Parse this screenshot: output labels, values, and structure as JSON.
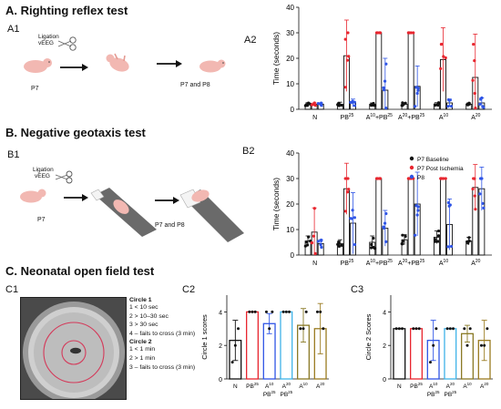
{
  "sections": {
    "a": "A. Righting reflex test",
    "b": "B. Negative geotaxis test",
    "c": "C. Neonatal open field test"
  },
  "panels": {
    "a1": "A1",
    "a2": "A2",
    "b1": "B1",
    "b2": "B2",
    "c1": "C1",
    "c2": "C2",
    "c3": "C3"
  },
  "schematic_a": {
    "ligation": "Ligation",
    "veeg": "vEEG",
    "p7": "P7",
    "p7p8": "P7 and P8"
  },
  "schematic_b": {
    "ligation": "Ligation",
    "veeg": "vEEG",
    "p7": "P7",
    "p7p8": "P7 and P8"
  },
  "open_field": {
    "c1_title": "Circle 1",
    "c1_items": [
      "1 < 10 sec",
      "2 > 10–30 sec",
      "3 > 30 sec",
      "4 – fails to cross (3 min)"
    ],
    "c2_title": "Circle 2",
    "c2_items": [
      "1 < 1 min",
      "2 > 1 min",
      "3 – fails to cross (3 min)"
    ]
  },
  "colors": {
    "baseline": "#111111",
    "post": "#e8262f",
    "p8": "#2f55e6"
  },
  "chart_data": [
    {
      "id": "a2",
      "type": "bar",
      "ylabel": "Time (seconds)",
      "ylim": [
        0,
        40
      ],
      "yticks": [
        0,
        10,
        20,
        30,
        40
      ],
      "categories": [
        {
          "name": "N",
          "sub": ""
        },
        {
          "name": "PB",
          "sup": "25"
        },
        {
          "name": "A",
          "sup": "10",
          "rest": "+PB",
          "rest_sup": "25"
        },
        {
          "name": "A",
          "sup": "20",
          "rest": "+PB",
          "rest_sup": "25"
        },
        {
          "name": "A",
          "sup": "10"
        },
        {
          "name": "A",
          "sup": "20"
        }
      ],
      "series": [
        {
          "color_key": "baseline",
          "values": [
            2,
            2,
            2,
            2,
            2,
            2
          ],
          "err": [
            0.6,
            0.8,
            0.5,
            0.6,
            0.6,
            0.5
          ]
        },
        {
          "color_key": "post",
          "values": [
            2,
            21,
            30,
            30,
            19.5,
            12.5
          ],
          "err": [
            0.5,
            14,
            0,
            0,
            12.5,
            17
          ]
        },
        {
          "color_key": "p8",
          "values": [
            2,
            2.5,
            7.5,
            9,
            2.5,
            2.5
          ],
          "err": [
            0.5,
            1.5,
            12.5,
            8,
            1.5,
            2
          ]
        }
      ]
    },
    {
      "id": "b2",
      "type": "bar",
      "ylabel": "Time (seconds)",
      "ylim": [
        0,
        40
      ],
      "yticks": [
        0,
        10,
        20,
        30,
        40
      ],
      "legend": [
        "P7 Baseline",
        "P7 Post Ischemia",
        "P8"
      ],
      "categories": [
        {
          "name": "N"
        },
        {
          "name": "PB",
          "sup": "25"
        },
        {
          "name": "A",
          "sup": "10",
          "rest": "+PB",
          "rest_sup": "25"
        },
        {
          "name": "A",
          "sup": "20",
          "rest": "+PB",
          "rest_sup": "25"
        },
        {
          "name": "A",
          "sup": "10"
        },
        {
          "name": "A",
          "sup": "20"
        }
      ],
      "series": [
        {
          "color_key": "baseline",
          "values": [
            5.5,
            4.5,
            5,
            6,
            7,
            5.5
          ],
          "err": [
            2,
            1.5,
            2.5,
            2,
            2.5,
            1.5
          ]
        },
        {
          "color_key": "post",
          "values": [
            9,
            26,
            30,
            30,
            30,
            26.5
          ],
          "err": [
            9.5,
            10,
            0,
            0,
            0,
            9
          ]
        },
        {
          "color_key": "p8",
          "values": [
            4.5,
            12.5,
            10.5,
            20,
            12,
            26
          ],
          "err": [
            1.5,
            12,
            7,
            12.5,
            10,
            8.5
          ]
        }
      ]
    },
    {
      "id": "c2",
      "type": "bar",
      "ylabel": "Circle 1 scores",
      "ylim": [
        0,
        5
      ],
      "yticks": [
        0,
        2,
        4
      ],
      "categories": [
        {
          "name": "N"
        },
        {
          "name": "PB",
          "sup": "25"
        },
        {
          "name": "A",
          "sup": "10",
          "line2": "PB",
          "line2_sup": "25"
        },
        {
          "name": "A",
          "sup": "20",
          "line2": "PB",
          "line2_sup": "25"
        },
        {
          "name": "A",
          "sup": "10"
        },
        {
          "name": "A",
          "sup": "20"
        }
      ],
      "colors": [
        "#111111",
        "#e8262f",
        "#2f55e6",
        "#3fb3e8",
        "#8a7a26",
        "#9a7b20"
      ],
      "values": [
        2.3,
        4,
        3.3,
        4,
        3.2,
        3
      ],
      "err": [
        1.2,
        0,
        0.6,
        0,
        1,
        1.5
      ]
    },
    {
      "id": "c3",
      "type": "bar",
      "ylabel": "Circle 2 Scores",
      "ylim": [
        0,
        5
      ],
      "yticks": [
        0,
        2,
        4
      ],
      "categories": [
        {
          "name": "N"
        },
        {
          "name": "PB",
          "sup": "25"
        },
        {
          "name": "A",
          "sup": "10",
          "line2": "PB",
          "line2_sup": "25"
        },
        {
          "name": "A",
          "sup": "20",
          "line2": "PB",
          "line2_sup": "25"
        },
        {
          "name": "A",
          "sup": "10"
        },
        {
          "name": "A",
          "sup": "20"
        }
      ],
      "colors": [
        "#111111",
        "#e8262f",
        "#2f55e6",
        "#3fb3e8",
        "#8a7a26",
        "#9a7b20"
      ],
      "values": [
        3,
        3,
        2.3,
        3,
        2.7,
        2.3
      ],
      "err": [
        0,
        0,
        1.2,
        0,
        0.5,
        1.2
      ]
    }
  ]
}
